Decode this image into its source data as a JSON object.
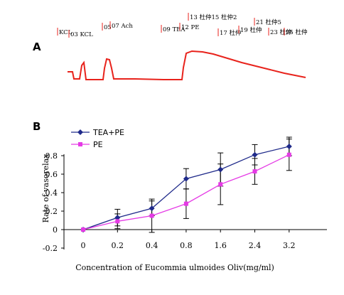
{
  "panel_a": {
    "label": "A",
    "annotations": [
      "KCL",
      "03 KCL",
      "05",
      "07 Ach",
      "09 TEA",
      "12 PE",
      "13 杜仲15 杜仲2",
      "17 杜仲",
      "19 杜仲",
      "21 杜仲5",
      "23 杜仲",
      "25 杜仲"
    ],
    "trace_color": "#e8231c"
  },
  "panel_b": {
    "label": "B"
  },
  "chart_data": {
    "type": "line",
    "ylabel": "Rate of vasorelax",
    "xlabel": "Concentration of Eucommia ulmoides Oliv(mg/ml)",
    "categories": [
      "0",
      "0.2",
      "0.4",
      "0.8",
      "1.6",
      "2.4",
      "3.2"
    ],
    "ylim": [
      -0.2,
      1.0
    ],
    "yticks": [
      "-0.2",
      "0",
      "0.2",
      "0.4",
      "0.6",
      "0.8"
    ],
    "legend_position": "top-left",
    "series": [
      {
        "name": "TEA+PE",
        "color": "#1f2a8a",
        "marker": "diamond",
        "values": [
          0.0,
          0.13,
          0.23,
          0.55,
          0.65,
          0.81,
          0.9
        ],
        "errors": [
          0.0,
          0.09,
          0.08,
          0.11,
          0.18,
          0.11,
          0.1
        ]
      },
      {
        "name": "PE",
        "color": "#e53ae5",
        "marker": "square",
        "values": [
          0.0,
          0.09,
          0.15,
          0.28,
          0.49,
          0.63,
          0.81
        ],
        "errors": [
          0.0,
          0.08,
          0.18,
          0.16,
          0.22,
          0.14,
          0.17
        ]
      }
    ]
  }
}
